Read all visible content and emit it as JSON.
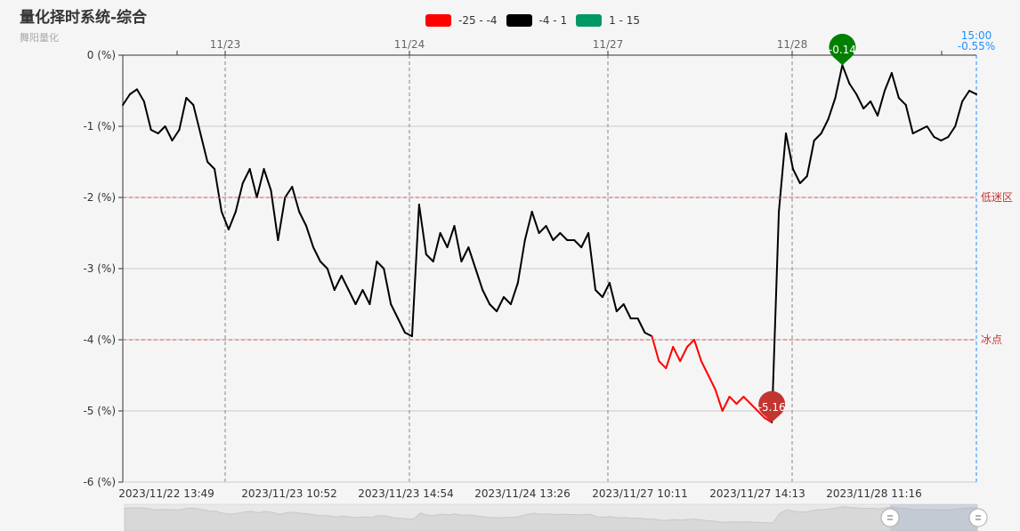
{
  "header": {
    "title": "量化择时系统-综合",
    "subtitle": "舞阳量化"
  },
  "legend": [
    {
      "label": "-25 - -4",
      "color": "#ff0000"
    },
    {
      "label": "-4 - 1",
      "color": "#000000"
    },
    {
      "label": "1 - 15",
      "color": "#009966"
    }
  ],
  "chart_data": {
    "type": "line",
    "title": "量化择时系统-综合",
    "subtitle": "舞阳量化",
    "ylim": [
      -6,
      0
    ],
    "y_ticks": [
      "0 (%)",
      "-1 (%)",
      "-2 (%)",
      "-3 (%)",
      "-4 (%)",
      "-5 (%)",
      "-6 (%)"
    ],
    "x_tick_labels": [
      "2023/11/22 13:49",
      "2023/11/23 10:52",
      "2023/11/23 14:54",
      "2023/11/24 13:26",
      "2023/11/27 10:11",
      "2023/11/27 14:13",
      "2023/11/28 11:16"
    ],
    "day_labels": [
      "11/23",
      "11/24",
      "11/27",
      "11/28"
    ],
    "grid": true,
    "visual_map": [
      {
        "range": [
          -25,
          -4
        ],
        "color": "#ff0000"
      },
      {
        "range": [
          -4,
          1
        ],
        "color": "#000000"
      },
      {
        "range": [
          1,
          15
        ],
        "color": "#009966"
      }
    ],
    "mark_lines": [
      {
        "value": -2,
        "label": "低迷区"
      },
      {
        "value": -4,
        "label": "冰点"
      }
    ],
    "max_point": {
      "label": "-0.14",
      "value": -0.14,
      "color": "#008000"
    },
    "min_point": {
      "label": "-5.16",
      "value": -5.16,
      "color": "#c23531"
    },
    "end_label": {
      "time": "15:00",
      "value": "-0.55%",
      "color": "#1e90ff"
    },
    "values": [
      -0.7,
      -0.55,
      -0.48,
      -0.65,
      -1.05,
      -1.1,
      -1.0,
      -1.2,
      -1.05,
      -0.6,
      -0.7,
      -1.1,
      -1.5,
      -1.6,
      -2.2,
      -2.45,
      -2.2,
      -1.8,
      -1.6,
      -2.0,
      -1.6,
      -1.9,
      -2.6,
      -2.0,
      -1.85,
      -2.2,
      -2.4,
      -2.7,
      -2.9,
      -3.0,
      -3.3,
      -3.1,
      -3.3,
      -3.5,
      -3.3,
      -3.5,
      -2.9,
      -3.0,
      -3.5,
      -3.7,
      -3.9,
      -3.95,
      -2.1,
      -2.8,
      -2.9,
      -2.5,
      -2.7,
      -2.4,
      -2.9,
      -2.7,
      -3.0,
      -3.3,
      -3.5,
      -3.6,
      -3.4,
      -3.5,
      -3.2,
      -2.6,
      -2.2,
      -2.5,
      -2.4,
      -2.6,
      -2.5,
      -2.6,
      -2.6,
      -2.7,
      -2.5,
      -3.3,
      -3.4,
      -3.2,
      -3.6,
      -3.5,
      -3.7,
      -3.7,
      -3.9,
      -3.95,
      -4.3,
      -4.4,
      -4.1,
      -4.3,
      -4.1,
      -4.0,
      -4.3,
      -4.5,
      -4.7,
      -5.0,
      -4.8,
      -4.9,
      -4.8,
      -4.9,
      -5.0,
      -5.1,
      -5.16,
      -2.2,
      -1.1,
      -1.6,
      -1.8,
      -1.7,
      -1.2,
      -1.1,
      -0.9,
      -0.6,
      -0.14,
      -0.4,
      -0.55,
      -0.75,
      -0.65,
      -0.85,
      -0.5,
      -0.25,
      -0.6,
      -0.7,
      -1.1,
      -1.05,
      -1.0,
      -1.15,
      -1.2,
      -1.15,
      -1.0,
      -0.65,
      -0.5,
      -0.55
    ]
  }
}
